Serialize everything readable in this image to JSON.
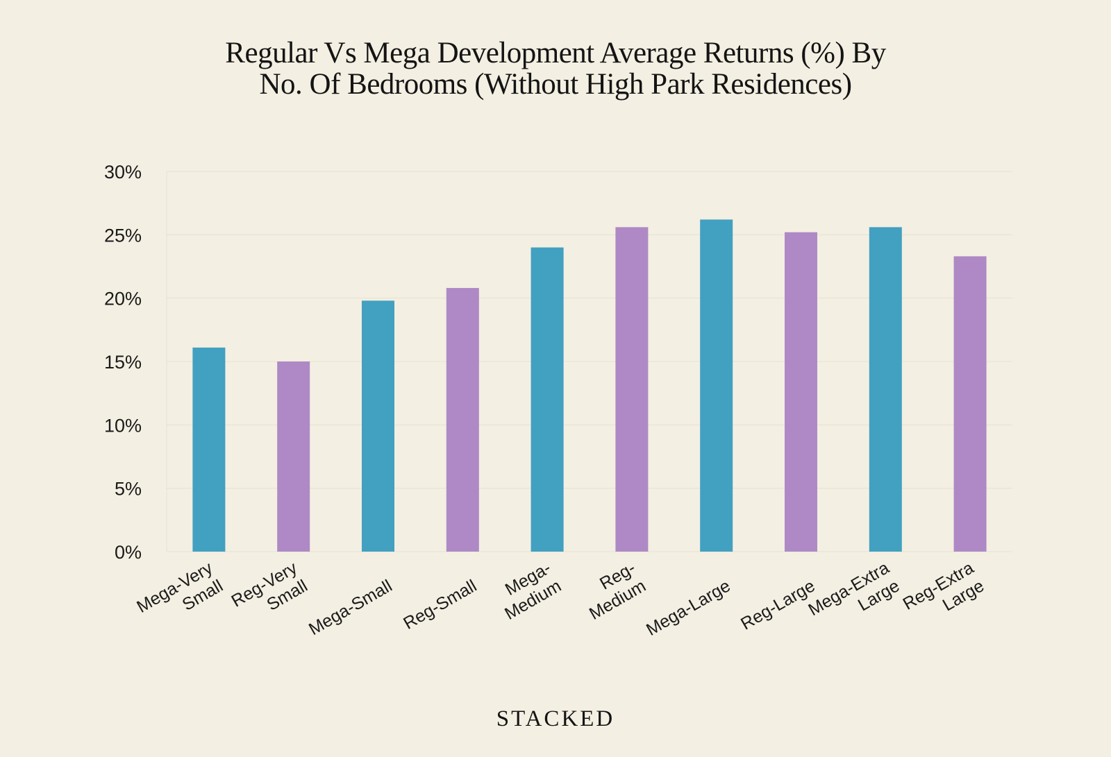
{
  "chart_data": {
    "type": "bar",
    "title_lines": [
      "Regular Vs Mega Development Average Returns (%) By",
      "No. Of Bedrooms (Without High Park Residences)"
    ],
    "categories": [
      [
        "Mega-Very",
        "Small"
      ],
      [
        "Reg-Very",
        "Small"
      ],
      [
        "Mega-Small"
      ],
      [
        "Reg-Small"
      ],
      [
        "Mega-",
        "Medium"
      ],
      [
        "Reg-",
        "Medium"
      ],
      [
        "Mega-Large"
      ],
      [
        "Reg-Large"
      ],
      [
        "Mega-Extra",
        "Large"
      ],
      [
        "Reg-Extra",
        "Large"
      ]
    ],
    "values": [
      16.1,
      15.0,
      19.8,
      20.8,
      24.0,
      25.6,
      26.2,
      25.2,
      25.6,
      23.3
    ],
    "bar_colors": [
      "#42a0c1",
      "#ae89c5",
      "#42a0c1",
      "#ae89c5",
      "#42a0c1",
      "#ae89c5",
      "#42a0c1",
      "#ae89c5",
      "#42a0c1",
      "#ae89c5"
    ],
    "yticks": [
      "0%",
      "5%",
      "10%",
      "15%",
      "20%",
      "25%",
      "30%"
    ],
    "ylim": [
      0,
      30
    ],
    "xlabel": "",
    "ylabel": "",
    "grid": true
  },
  "brand": "STACKED"
}
